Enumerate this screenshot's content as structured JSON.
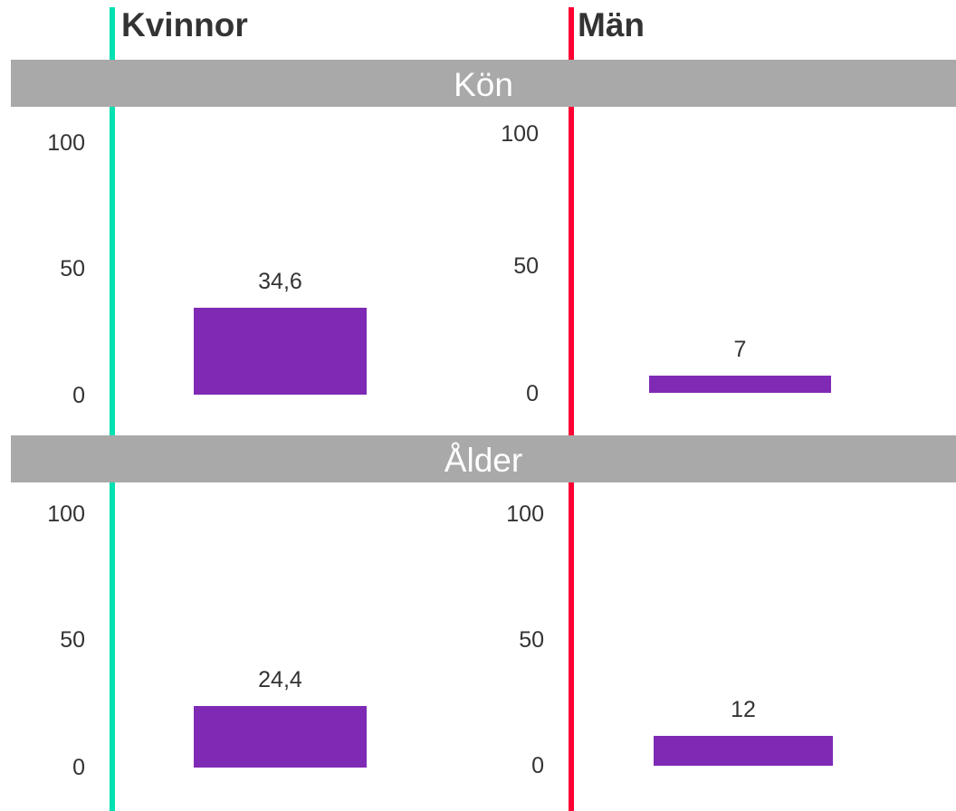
{
  "colors": {
    "women": "#00e0b0",
    "men": "#ff0033",
    "bar": "#7f2ab5",
    "band": "#a9a9a9"
  },
  "columns": {
    "women": "Kvinnor",
    "men": "Män"
  },
  "chart_data": [
    {
      "type": "bar",
      "section": "Kön",
      "series": [
        {
          "name": "Kvinnor",
          "values": [
            34.6
          ],
          "label": "34,6"
        },
        {
          "name": "Män",
          "values": [
            7
          ],
          "label": "7"
        }
      ],
      "ylim": [
        0,
        100
      ],
      "yticks": [
        "0",
        "50",
        "100"
      ]
    },
    {
      "type": "bar",
      "section": "Ålder",
      "series": [
        {
          "name": "Kvinnor",
          "values": [
            24.4
          ],
          "label": "24,4"
        },
        {
          "name": "Män",
          "values": [
            12
          ],
          "label": "12"
        }
      ],
      "ylim": [
        0,
        100
      ],
      "yticks": [
        "0",
        "50",
        "100"
      ]
    }
  ]
}
